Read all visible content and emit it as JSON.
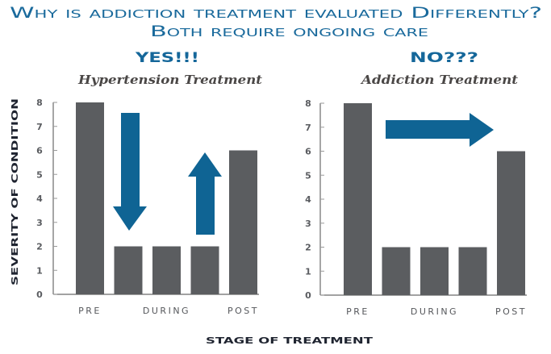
{
  "title": {
    "line1": "Why is addiction treatment evaluated Differently?",
    "line2": "Both require ongoing care"
  },
  "colors": {
    "title": "#1a6a9c",
    "bar": "#5b5d60",
    "arrow": "#0f6494"
  },
  "chart_data": [
    {
      "type": "bar",
      "verdict": "YES!!!",
      "title": "Hypertension Treatment",
      "ylabel": "SEVERITY OF CONDITION",
      "xlabel": "STAGE OF TREATMENT",
      "ylim": [
        0,
        8
      ],
      "yticks": [
        "0",
        "1",
        "2",
        "3",
        "4",
        "5",
        "6",
        "7",
        "8"
      ],
      "xtick_labels": [
        "PRE",
        "DURING",
        "POST"
      ],
      "bars": [
        {
          "stage": "PRE",
          "value": 8
        },
        {
          "stage": "DURING",
          "value": 2
        },
        {
          "stage": "DURING",
          "value": 2
        },
        {
          "stage": "DURING",
          "value": 2
        },
        {
          "stage": "POST",
          "value": 6
        }
      ],
      "annotations": [
        {
          "type": "arrow",
          "direction": "down"
        },
        {
          "type": "arrow",
          "direction": "up"
        }
      ],
      "grid": false,
      "legend": "none"
    },
    {
      "type": "bar",
      "verdict": "NO???",
      "title": "Addiction Treatment",
      "ylabel": "SEVERITY OF CONDITION",
      "xlabel": "STAGE OF TREATMENT",
      "ylim": [
        0,
        8
      ],
      "yticks": [
        "0",
        "1",
        "2",
        "3",
        "4",
        "5",
        "6",
        "7",
        "8"
      ],
      "xtick_labels": [
        "PRE",
        "DURING",
        "POST"
      ],
      "bars": [
        {
          "stage": "PRE",
          "value": 8
        },
        {
          "stage": "DURING",
          "value": 2
        },
        {
          "stage": "DURING",
          "value": 2
        },
        {
          "stage": "DURING",
          "value": 2
        },
        {
          "stage": "POST",
          "value": 6
        }
      ],
      "annotations": [
        {
          "type": "arrow",
          "direction": "right"
        }
      ],
      "grid": false,
      "legend": "none"
    }
  ]
}
